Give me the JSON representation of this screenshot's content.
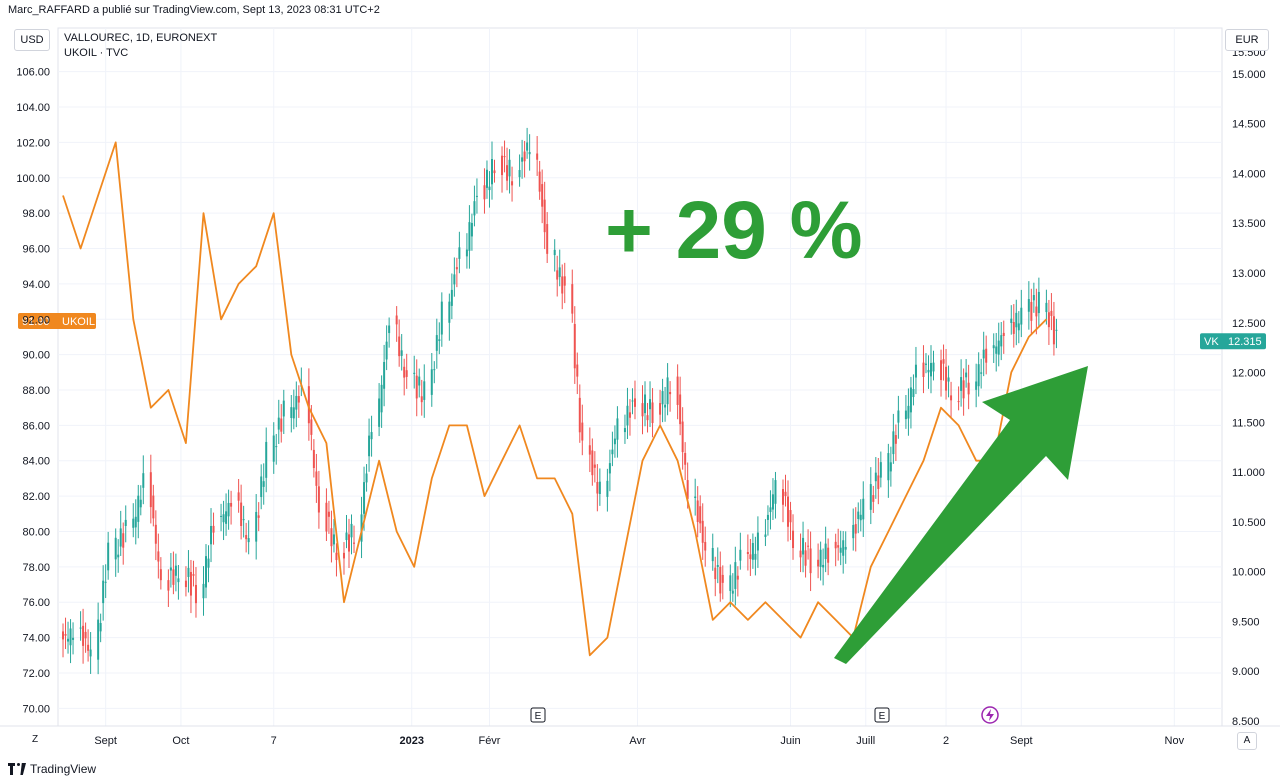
{
  "header": {
    "author_line": "Marc_RAFFARD a publié sur TradingView.com, Sept 13, 2023 08:31 UTC+2"
  },
  "left_currency": "USD",
  "right_currency": "EUR",
  "symbols": {
    "main": "VALLOUREC, 1D, EURONEXT",
    "compare": "UKOIL · TVC"
  },
  "corner_left": "Z",
  "corner_right": "A",
  "footer": {
    "brand": "TradingView",
    "logo_icon": "tradingview-logo-icon"
  },
  "annotation": {
    "text": "+ 29 %",
    "color": "#2e9e37",
    "arrow_color": "#2e9e37"
  },
  "colors": {
    "ukoil": "#f0881f",
    "up_candle": "#26a69a",
    "down_candle": "#ef5350",
    "grid": "#f0f3fa",
    "vk_label_bg": "#26a69a",
    "ukoil_label_bg": "#f0881f"
  },
  "chart_data": {
    "type": "line",
    "x_ticks": [
      "Sept",
      "Oct",
      "7",
      "2023",
      "Févr",
      "Avr",
      "Juin",
      "Juill",
      "2",
      "Sept",
      "Nov"
    ],
    "left_axis": {
      "unit": "USD",
      "ylim": [
        69,
        107
      ],
      "ticks": [
        "72.00",
        "74.00",
        "76.00",
        "78.00",
        "80.00",
        "82.00",
        "84.00",
        "86.00",
        "88.00",
        "90.00",
        "92.00",
        "94.00",
        "96.00",
        "98.00",
        "100.00",
        "102.00",
        "104.00",
        "106.00"
      ],
      "other_ticks": [
        "70.00"
      ]
    },
    "right_axis": {
      "unit": "EUR",
      "ylim": [
        8.45,
        15.2
      ],
      "ticks": [
        "8.500",
        "9.000",
        "9.500",
        "10.000",
        "10.500",
        "11.000",
        "11.500",
        "12.000",
        "12.500",
        "13.000",
        "13.500",
        "14.000",
        "14.500",
        "15.000"
      ],
      "clipped_top": "15.500"
    },
    "series": [
      {
        "symbol": "UKOIL",
        "kind": "line",
        "axis": "left",
        "last_value": "91.90",
        "x": [
          "2022-08-15",
          "2022-08-22",
          "2022-08-29",
          "2022-09-05",
          "2022-09-12",
          "2022-09-19",
          "2022-09-26",
          "2022-10-03",
          "2022-10-10",
          "2022-10-17",
          "2022-10-24",
          "2022-10-31",
          "2022-11-07",
          "2022-11-14",
          "2022-11-21",
          "2022-11-28",
          "2022-12-05",
          "2022-12-12",
          "2022-12-19",
          "2022-12-26",
          "2023-01-02",
          "2023-01-09",
          "2023-01-16",
          "2023-01-23",
          "2023-01-30",
          "2023-02-06",
          "2023-02-13",
          "2023-02-20",
          "2023-02-27",
          "2023-03-06",
          "2023-03-13",
          "2023-03-20",
          "2023-03-27",
          "2023-04-03",
          "2023-04-10",
          "2023-04-17",
          "2023-04-24",
          "2023-05-01",
          "2023-05-08",
          "2023-05-15",
          "2023-05-22",
          "2023-05-29",
          "2023-06-05",
          "2023-06-12",
          "2023-06-19",
          "2023-06-26",
          "2023-07-03",
          "2023-07-10",
          "2023-07-17",
          "2023-07-24",
          "2023-07-31",
          "2023-08-07",
          "2023-08-14",
          "2023-08-21",
          "2023-08-28",
          "2023-09-04",
          "2023-09-11"
        ],
        "values": [
          99,
          96,
          99,
          102,
          92,
          87,
          88,
          85,
          98,
          92,
          94,
          95,
          98,
          90,
          87,
          85,
          76,
          80,
          84,
          80,
          78,
          83,
          86,
          86,
          82,
          84,
          86,
          83,
          83,
          81,
          73,
          74,
          79,
          84,
          86,
          84,
          80,
          75,
          76,
          75,
          76,
          75,
          74,
          76,
          75,
          74,
          78,
          80,
          82,
          84,
          87,
          86,
          84,
          84,
          89,
          91,
          92
        ]
      },
      {
        "symbol": "VK",
        "kind": "candlestick-close",
        "axis": "right",
        "last_value": "12.315",
        "x": [
          "2022-08-15",
          "2022-08-22",
          "2022-08-29",
          "2022-09-05",
          "2022-09-12",
          "2022-09-19",
          "2022-09-26",
          "2022-10-03",
          "2022-10-10",
          "2022-10-17",
          "2022-10-24",
          "2022-10-31",
          "2022-11-07",
          "2022-11-14",
          "2022-11-21",
          "2022-11-28",
          "2022-12-05",
          "2022-12-12",
          "2022-12-19",
          "2022-12-26",
          "2023-01-02",
          "2023-01-09",
          "2023-01-16",
          "2023-01-23",
          "2023-01-30",
          "2023-02-06",
          "2023-02-13",
          "2023-02-20",
          "2023-02-27",
          "2023-03-06",
          "2023-03-13",
          "2023-03-20",
          "2023-03-27",
          "2023-04-03",
          "2023-04-10",
          "2023-04-17",
          "2023-04-24",
          "2023-05-01",
          "2023-05-08",
          "2023-05-15",
          "2023-05-22",
          "2023-05-29",
          "2023-06-05",
          "2023-06-12",
          "2023-06-19",
          "2023-06-26",
          "2023-07-03",
          "2023-07-10",
          "2023-07-17",
          "2023-07-24",
          "2023-07-31",
          "2023-08-07",
          "2023-08-14",
          "2023-08-21",
          "2023-08-28",
          "2023-09-04",
          "2023-09-11"
        ],
        "values": [
          9.4,
          9.2,
          10.2,
          10.4,
          10.9,
          9.9,
          10.0,
          9.8,
          10.5,
          10.7,
          10.3,
          11.2,
          11.6,
          11.8,
          10.6,
          10.2,
          10.4,
          11.5,
          12.5,
          11.9,
          11.8,
          12.6,
          13.2,
          13.8,
          14.1,
          14.0,
          14.3,
          13.2,
          12.8,
          11.2,
          10.8,
          11.5,
          11.7,
          11.6,
          11.9,
          10.8,
          10.2,
          9.8,
          10.1,
          10.3,
          10.9,
          10.3,
          10.1,
          10.2,
          10.3,
          10.7,
          11.0,
          11.5,
          12.0,
          12.1,
          11.8,
          11.9,
          12.2,
          12.4,
          12.6,
          12.7,
          12.315
        ]
      }
    ]
  }
}
